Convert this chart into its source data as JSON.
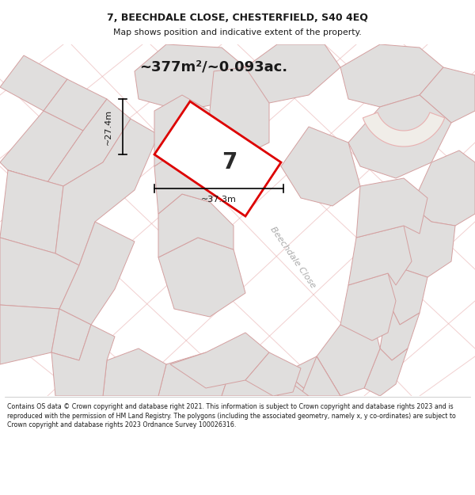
{
  "title_line1": "7, BEECHDALE CLOSE, CHESTERFIELD, S40 4EQ",
  "title_line2": "Map shows position and indicative extent of the property.",
  "area_text": "~377m²/~0.093ac.",
  "plot_number": "7",
  "dim_width": "~37.3m",
  "dim_height": "~27.4m",
  "road_label": "Beechdale Close",
  "footer": "Contains OS data © Crown copyright and database right 2021. This information is subject to Crown copyright and database rights 2023 and is reproduced with the permission of HM Land Registry. The polygons (including the associated geometry, namely x, y co-ordinates) are subject to Crown copyright and database rights 2023 Ordnance Survey 100026316.",
  "map_bg": "#f5f3f1",
  "plot_fill": "#ffffff",
  "plot_edge": "#dd0000",
  "parcel_fill": "#e0dedd",
  "parcel_edge": "#d4a0a0",
  "road_line_color": "#e8b0b0",
  "footer_bg": "#ffffff",
  "title_bg": "#ffffff",
  "text_color": "#1a1a1a",
  "road_label_color": "#aaaaaa"
}
